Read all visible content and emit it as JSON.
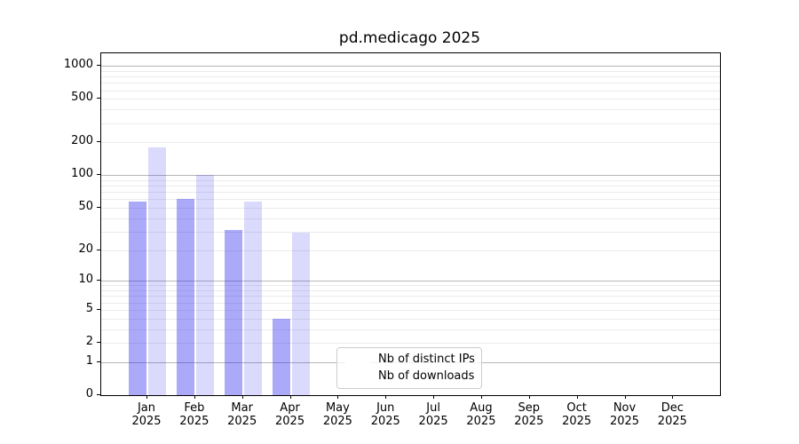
{
  "title": "pd.medicago 2025",
  "legend": {
    "items": [
      {
        "label": "Nb of distinct IPs",
        "color": "rgba(35,35,240,0.39)"
      },
      {
        "label": "Nb of downloads",
        "color": "rgba(35,35,240,0.17)"
      }
    ]
  },
  "chart_data": {
    "type": "bar",
    "title": "pd.medicago 2025",
    "categories": [
      "Jan 2025",
      "Feb 2025",
      "Mar 2025",
      "Apr 2025",
      "May 2025",
      "Jun 2025",
      "Jul 2025",
      "Aug 2025",
      "Sep 2025",
      "Oct 2025",
      "Nov 2025",
      "Dec 2025"
    ],
    "series": [
      {
        "name": "Nb of distinct IPs",
        "color": "rgba(35,35,240,0.39)",
        "values": [
          57,
          60,
          31,
          4,
          0,
          0,
          0,
          0,
          0,
          0,
          0,
          0
        ]
      },
      {
        "name": "Nb of downloads",
        "color": "rgba(35,35,240,0.17)",
        "values": [
          181,
          100,
          57,
          29,
          0,
          0,
          0,
          0,
          0,
          0,
          0,
          0
        ]
      }
    ],
    "xlabel": "",
    "ylabel": "",
    "yscale": "log10(1+value)",
    "ytick_values": [
      0,
      1,
      2,
      5,
      10,
      20,
      50,
      100,
      200,
      500,
      1000
    ],
    "ytick_labels": [
      "0",
      "1",
      "2",
      "5",
      "10",
      "20",
      "50",
      "100",
      "200",
      "500",
      "1000"
    ],
    "ylim": [
      0,
      1300
    ],
    "major_grid_values": [
      1,
      10,
      100,
      1000
    ],
    "minor_grid_values": [
      2,
      3,
      4,
      5,
      6,
      7,
      8,
      9,
      20,
      30,
      40,
      50,
      60,
      70,
      80,
      90,
      200,
      300,
      400,
      500,
      600,
      700,
      800,
      900
    ],
    "grid": "both",
    "legend_position": "inside lower-center",
    "colors": {
      "major_grid": "#b6b6b6",
      "minor_grid": "#ebebeb",
      "spine": "#000000"
    }
  }
}
